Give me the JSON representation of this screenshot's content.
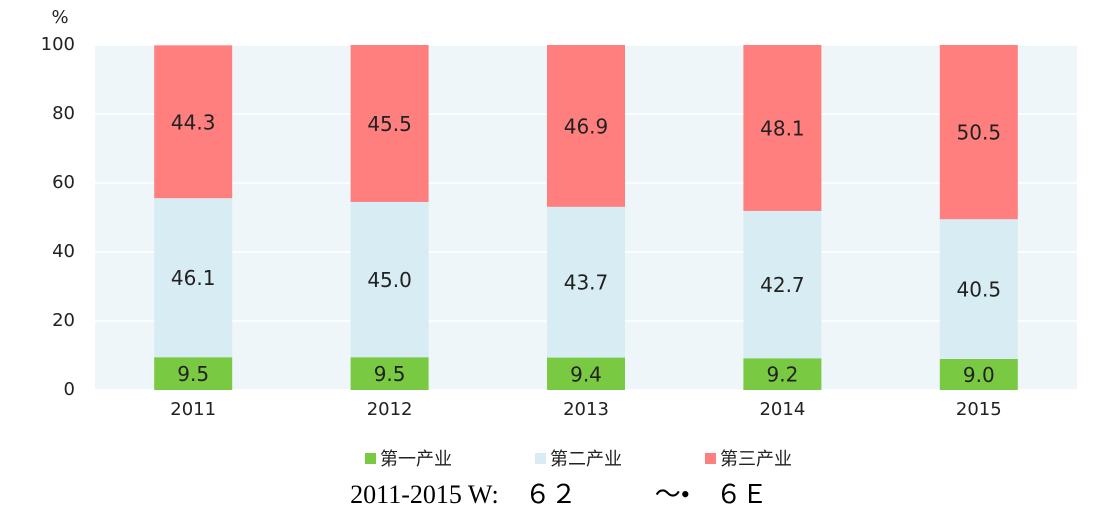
{
  "chart_data": {
    "type": "stacked_bar",
    "y_label": "%",
    "caption": "2011-2015 W:　６２　　　～•　６Ｅ",
    "categories": [
      "2011",
      "2012",
      "2013",
      "2014",
      "2015"
    ],
    "series": [
      {
        "name": "第一产业",
        "color": "#7ac943",
        "values": [
          9.5,
          9.5,
          9.4,
          9.2,
          9.0
        ],
        "value_labels": [
          "9.5",
          "9.5",
          "9.4",
          "9.2",
          "9.0"
        ]
      },
      {
        "name": "第二产业",
        "color": "#d8ecf3",
        "values": [
          46.1,
          45.0,
          43.7,
          42.7,
          40.5
        ],
        "value_labels": [
          "46.1",
          "45.0",
          "43.7",
          "42.7",
          "40.5"
        ]
      },
      {
        "name": "第三产业",
        "color": "#ff7f7f",
        "values": [
          44.3,
          45.5,
          46.9,
          48.1,
          50.5
        ],
        "value_labels": [
          "44.3",
          "45.5",
          "46.9",
          "48.1",
          "50.5"
        ]
      }
    ],
    "ylim": [
      0,
      100
    ],
    "yticks": [
      0,
      20,
      40,
      60,
      80,
      100
    ],
    "grid": true,
    "legend": "bottom"
  }
}
